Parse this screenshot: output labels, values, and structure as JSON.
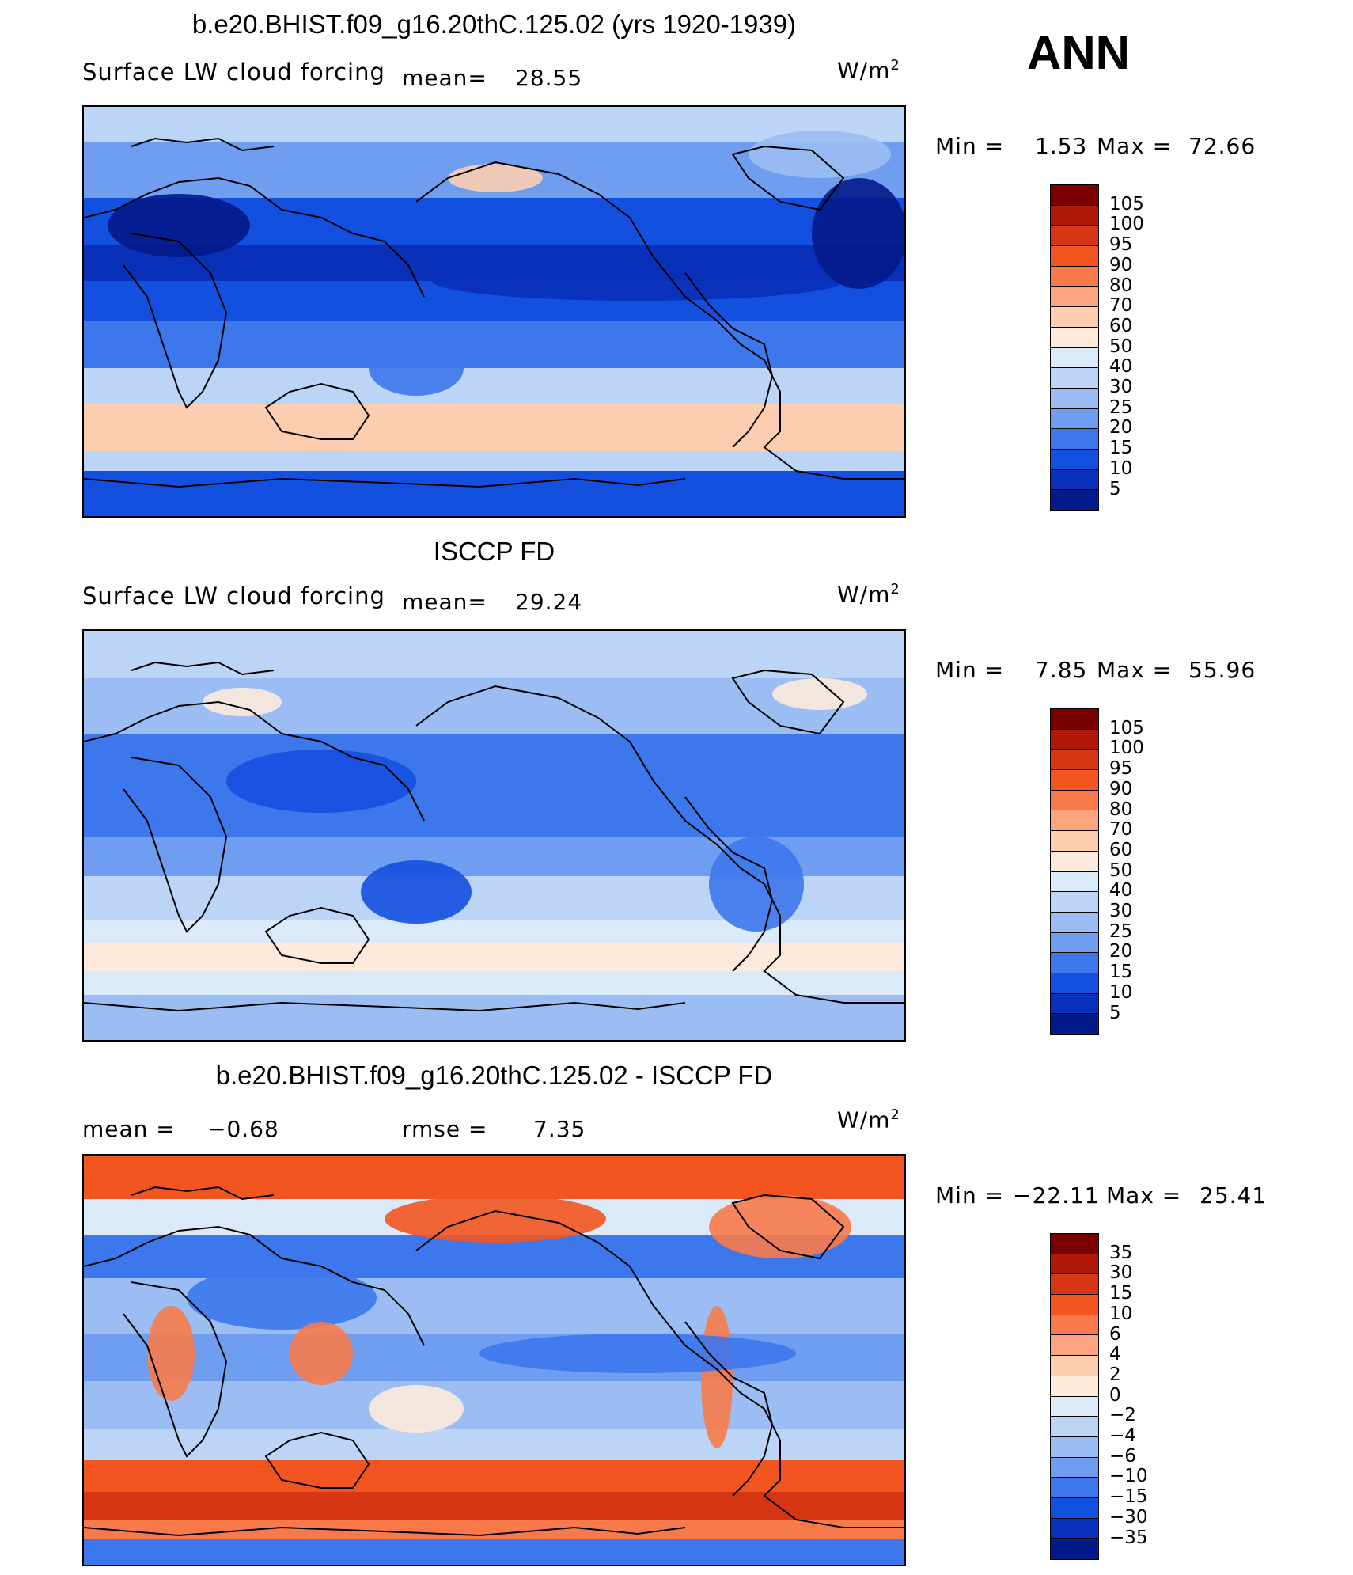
{
  "corner_label": "ANN",
  "units_label": "W/m",
  "units_exp": "2",
  "panels": [
    {
      "title": "b.e20.BHIST.f09_g16.20thC.125.02 (yrs 1920-1939)",
      "subtitle": "Surface LW cloud forcing",
      "mean_label": "mean=",
      "mean_value": "28.55",
      "min_label": "Min =",
      "min_value": "1.53",
      "max_label": "Max =",
      "max_value": "72.66",
      "colorbar_labels": [
        "105",
        "100",
        "95",
        "90",
        "80",
        "70",
        "60",
        "50",
        "40",
        "30",
        "25",
        "20",
        "15",
        "10",
        "5"
      ]
    },
    {
      "title": "ISCCP FD",
      "subtitle": "Surface LW cloud forcing",
      "mean_label": "mean=",
      "mean_value": "29.24",
      "min_label": "Min =",
      "min_value": "7.85",
      "max_label": "Max =",
      "max_value": "55.96",
      "colorbar_labels": [
        "105",
        "100",
        "95",
        "90",
        "80",
        "70",
        "60",
        "50",
        "40",
        "30",
        "25",
        "20",
        "15",
        "10",
        "5"
      ]
    },
    {
      "title": "b.e20.BHIST.f09_g16.20thC.125.02 - ISCCP FD",
      "mean_label": "mean =",
      "mean_value": "−0.68",
      "rmse_label": "rmse =",
      "rmse_value": "7.35",
      "min_label": "Min =",
      "min_value": "−22.11",
      "max_label": "Max =",
      "max_value": "25.41",
      "colorbar_labels": [
        "35",
        "30",
        "15",
        "10",
        "6",
        "4",
        "2",
        "0",
        "−2",
        "−4",
        "−6",
        "−10",
        "−15",
        "−30",
        "−35"
      ]
    }
  ],
  "palette": [
    "#7a0000",
    "#b0180a",
    "#d63614",
    "#f25520",
    "#f87a4a",
    "#fba47e",
    "#fdcdb0",
    "#fdeadb",
    "#dbeaf8",
    "#bcd4f5",
    "#9bbdf3",
    "#6f9ef0",
    "#3c77ec",
    "#1450e0",
    "#0830b8",
    "#031a8a"
  ]
}
